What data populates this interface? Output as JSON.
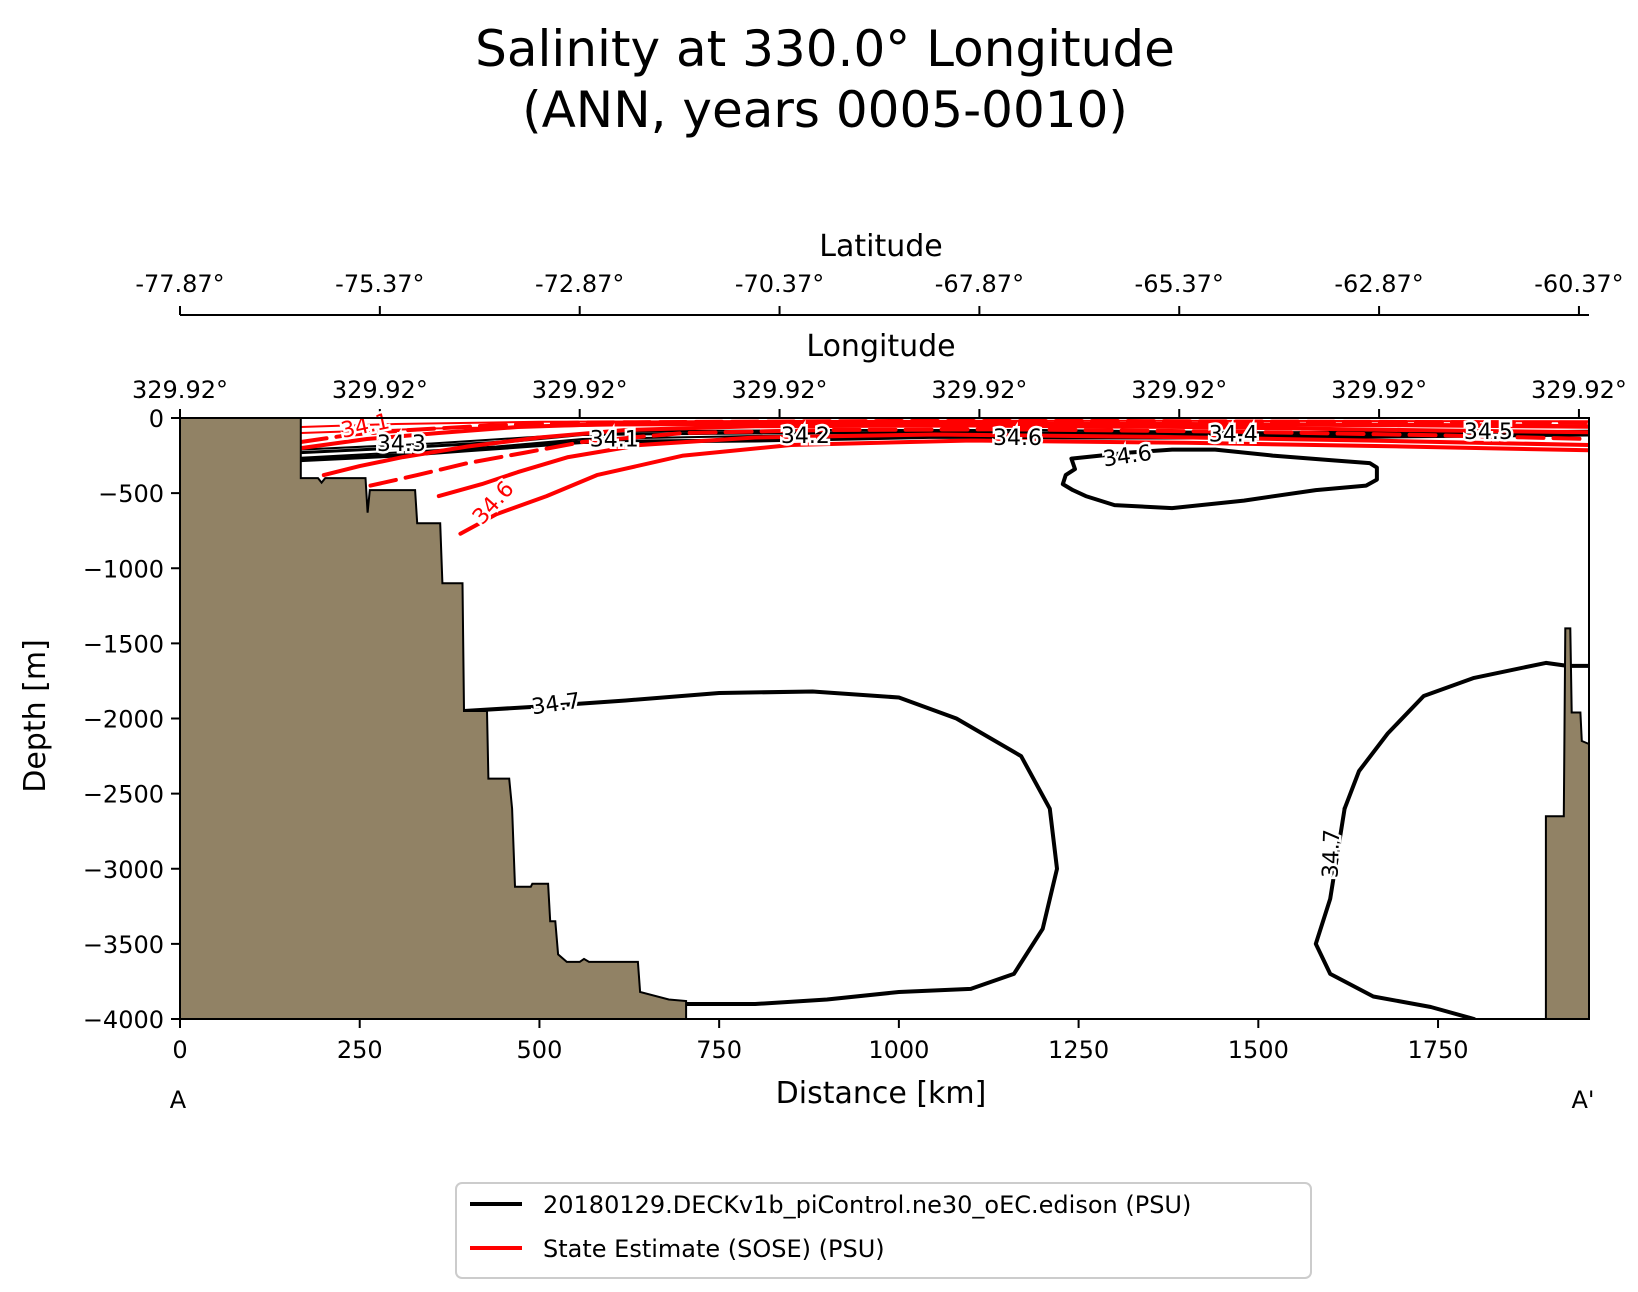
{
  "chart_data": {
    "type": "contour-section",
    "title_line1": "Salinity at 330.0° Longitude",
    "title_line2": "(ANN, years 0005-0010)",
    "xlabel": "Distance [km]",
    "ylabel": "Depth [m]",
    "xlim": [
      0,
      1960
    ],
    "ylim": [
      -4000,
      0
    ],
    "x_ticks": [
      0,
      250,
      500,
      750,
      1000,
      1250,
      1500,
      1750
    ],
    "y_ticks": [
      0,
      -500,
      -1000,
      -1500,
      -2000,
      -2500,
      -3000,
      -3500,
      -4000
    ],
    "latitude_axis": {
      "label": "Latitude",
      "tick_positions_km": [
        0,
        278,
        556,
        834,
        1112,
        1390,
        1668,
        1946
      ],
      "tick_labels": [
        "-77.87°",
        "-75.37°",
        "-72.87°",
        "-70.37°",
        "-67.87°",
        "-65.37°",
        "-62.87°",
        "-60.37°"
      ]
    },
    "longitude_axis": {
      "label": "Longitude",
      "tick_positions_km": [
        0,
        278,
        556,
        834,
        1112,
        1390,
        1668,
        1946
      ],
      "tick_labels": [
        "329.92°",
        "329.92°",
        "329.92°",
        "329.92°",
        "329.92°",
        "329.92°",
        "329.92°",
        "329.92°"
      ]
    },
    "endpoints": {
      "start": "A",
      "end": "A'"
    },
    "bathymetry": [
      [
        0,
        0
      ],
      [
        168,
        0
      ],
      [
        168,
        -400
      ],
      [
        192,
        -400
      ],
      [
        197,
        -430
      ],
      [
        202,
        -400
      ],
      [
        258,
        -400
      ],
      [
        261,
        -630
      ],
      [
        264,
        -480
      ],
      [
        327,
        -480
      ],
      [
        330,
        -700
      ],
      [
        362,
        -700
      ],
      [
        365,
        -1100
      ],
      [
        393,
        -1100
      ],
      [
        395,
        -1950
      ],
      [
        427,
        -1950
      ],
      [
        429,
        -2400
      ],
      [
        458,
        -2400
      ],
      [
        462,
        -2600
      ],
      [
        466,
        -3120
      ],
      [
        488,
        -3120
      ],
      [
        490,
        -3100
      ],
      [
        512,
        -3100
      ],
      [
        515,
        -3350
      ],
      [
        522,
        -3350
      ],
      [
        526,
        -3570
      ],
      [
        538,
        -3620
      ],
      [
        556,
        -3620
      ],
      [
        562,
        -3600
      ],
      [
        569,
        -3620
      ],
      [
        637,
        -3620
      ],
      [
        640,
        -3820
      ],
      [
        680,
        -3870
      ],
      [
        704,
        -3880
      ],
      [
        704,
        -4000
      ],
      [
        0,
        -4000
      ]
    ],
    "bathymetry_right": [
      [
        1900,
        -4000
      ],
      [
        1900,
        -2650
      ],
      [
        1925,
        -2650
      ],
      [
        1927,
        -1400
      ],
      [
        1934,
        -1400
      ],
      [
        1936,
        -1960
      ],
      [
        1948,
        -1960
      ],
      [
        1950,
        -2150
      ],
      [
        1960,
        -2170
      ],
      [
        1960,
        -4000
      ]
    ],
    "bathymetry_color": "#918265",
    "series": [
      {
        "name": "20180129.DECKv1b_piControl.ne30_oEC.edison (PSU)",
        "color": "#000000",
        "contours": [
          {
            "points": [
              [
                168,
                -280
              ],
              [
                300,
                -250
              ],
              [
                400,
                -215
              ],
              [
                560,
                -160
              ],
              [
                800,
                -150
              ],
              [
                1050,
                -125
              ],
              [
                1300,
                -130
              ],
              [
                1550,
                -130
              ],
              [
                1750,
                -120
              ],
              [
                1960,
                -110
              ]
            ],
            "width": 4
          },
          {
            "points": [
              [
                168,
                -230
              ],
              [
                300,
                -200
              ],
              [
                450,
                -160
              ],
              [
                560,
                -110
              ],
              [
                800,
                -100
              ],
              [
                1050,
                -95
              ],
              [
                1300,
                -100
              ],
              [
                1550,
                -110
              ],
              [
                1750,
                -100
              ],
              [
                1960,
                -90
              ]
            ],
            "width": 3
          },
          {
            "points": [
              [
                168,
                -210
              ],
              [
                350,
                -170
              ],
              [
                480,
                -130
              ],
              [
                620,
                -90
              ],
              [
                900,
                -80
              ],
              [
                1200,
                -80
              ],
              [
                1500,
                -95
              ],
              [
                1800,
                -90
              ],
              [
                1960,
                -85
              ]
            ],
            "width": 2
          },
          {
            "points": [
              [
                168,
                -265
              ],
              [
                320,
                -225
              ],
              [
                440,
                -190
              ],
              [
                560,
                -140
              ],
              [
                800,
                -120
              ],
              [
                1050,
                -110
              ],
              [
                1300,
                -115
              ],
              [
                1550,
                -125
              ],
              [
                1750,
                -115
              ],
              [
                1960,
                -100
              ]
            ],
            "width": 2
          },
          {
            "points": [
              [
                1240,
                -270
              ],
              [
                1320,
                -230
              ],
              [
                1380,
                -210
              ],
              [
                1440,
                -210
              ],
              [
                1520,
                -250
              ],
              [
                1600,
                -280
              ],
              [
                1655,
                -300
              ],
              [
                1665,
                -330
              ],
              [
                1665,
                -410
              ],
              [
                1650,
                -450
              ],
              [
                1580,
                -480
              ],
              [
                1480,
                -550
              ],
              [
                1380,
                -600
              ],
              [
                1300,
                -580
              ],
              [
                1260,
                -520
              ],
              [
                1242,
                -480
              ],
              [
                1228,
                -440
              ],
              [
                1232,
                -380
              ],
              [
                1245,
                -340
              ]
            ],
            "width": 4,
            "closed": true
          },
          {
            "points": [
              [
                395,
                -1950
              ],
              [
                500,
                -1920
              ],
              [
                620,
                -1880
              ],
              [
                750,
                -1830
              ],
              [
                880,
                -1820
              ],
              [
                1000,
                -1860
              ],
              [
                1080,
                -2000
              ],
              [
                1170,
                -2250
              ],
              [
                1210,
                -2600
              ],
              [
                1220,
                -3000
              ],
              [
                1200,
                -3400
              ],
              [
                1160,
                -3700
              ],
              [
                1100,
                -3800
              ],
              [
                1000,
                -3820
              ],
              [
                900,
                -3870
              ],
              [
                800,
                -3900
              ],
              [
                704,
                -3900
              ]
            ],
            "width": 4
          },
          {
            "points": [
              [
                1620,
                -2600
              ],
              [
                1640,
                -2350
              ],
              [
                1680,
                -2100
              ],
              [
                1730,
                -1850
              ],
              [
                1800,
                -1730
              ],
              [
                1900,
                -1630
              ],
              [
                1930,
                -1650
              ],
              [
                1960,
                -1650
              ]
            ],
            "width": 4
          },
          {
            "points": [
              [
                1620,
                -2600
              ],
              [
                1600,
                -3200
              ],
              [
                1580,
                -3500
              ],
              [
                1600,
                -3700
              ],
              [
                1660,
                -3850
              ],
              [
                1740,
                -3920
              ],
              [
                1800,
                -4000
              ]
            ],
            "width": 4
          }
        ],
        "labels": [
          {
            "text": "34.3",
            "x": 308,
            "y": -180,
            "rotate": 0
          },
          {
            "text": "34.1",
            "x": 604,
            "y": -150,
            "rotate": 0
          },
          {
            "text": "34.2",
            "x": 870,
            "y": -125,
            "rotate": 0
          },
          {
            "text": "34.6",
            "x": 1165,
            "y": -140,
            "rotate": 0
          },
          {
            "text": "34.4",
            "x": 1465,
            "y": -115,
            "rotate": 0
          },
          {
            "text": "34.5",
            "x": 1820,
            "y": -100,
            "rotate": 0
          },
          {
            "text": "34.6",
            "x": 1318,
            "y": -260,
            "rotate": -8
          },
          {
            "text": "34.7",
            "x": 523,
            "y": -1910,
            "rotate": -8
          },
          {
            "text": "34.7",
            "x": 1603,
            "y": -2900,
            "rotate": -88
          }
        ]
      },
      {
        "name": "State Estimate (SOSE) (PSU)",
        "color": "#ff0000",
        "contours": [
          {
            "points": [
              [
                168,
                -160
              ],
              [
                240,
                -110
              ],
              [
                320,
                -80
              ],
              [
                430,
                -50
              ],
              [
                560,
                -30
              ],
              [
                750,
                -25
              ],
              [
                1000,
                -20
              ],
              [
                1300,
                -20
              ],
              [
                1600,
                -25
              ],
              [
                1960,
                -30
              ]
            ],
            "width": 4,
            "dash": true
          },
          {
            "points": [
              [
                168,
                -200
              ],
              [
                260,
                -140
              ],
              [
                360,
                -100
              ],
              [
                470,
                -60
              ],
              [
                600,
                -40
              ],
              [
                800,
                -35
              ],
              [
                1100,
                -35
              ],
              [
                1400,
                -40
              ],
              [
                1700,
                -45
              ],
              [
                1960,
                -55
              ]
            ],
            "width": 4
          },
          {
            "points": [
              [
                200,
                -380
              ],
              [
                250,
                -320
              ],
              [
                310,
                -260
              ],
              [
                400,
                -190
              ],
              [
                500,
                -130
              ],
              [
                620,
                -80
              ],
              [
                800,
                -55
              ],
              [
                1100,
                -50
              ],
              [
                1400,
                -60
              ],
              [
                1700,
                -80
              ],
              [
                1960,
                -95
              ]
            ],
            "width": 4
          },
          {
            "points": [
              [
                265,
                -450
              ],
              [
                330,
                -380
              ],
              [
                400,
                -300
              ],
              [
                480,
                -230
              ],
              [
                560,
                -160
              ],
              [
                700,
                -100
              ],
              [
                900,
                -80
              ],
              [
                1150,
                -75
              ],
              [
                1450,
                -90
              ],
              [
                1750,
                -115
              ],
              [
                1960,
                -140
              ]
            ],
            "width": 4,
            "dash": true
          },
          {
            "points": [
              [
                360,
                -520
              ],
              [
                420,
                -440
              ],
              [
                470,
                -360
              ],
              [
                540,
                -260
              ],
              [
                640,
                -180
              ],
              [
                800,
                -130
              ],
              [
                1050,
                -110
              ],
              [
                1350,
                -125
              ],
              [
                1650,
                -150
              ],
              [
                1960,
                -180
              ]
            ],
            "width": 4
          },
          {
            "points": [
              [
                390,
                -770
              ],
              [
                440,
                -640
              ],
              [
                510,
                -520
              ],
              [
                580,
                -380
              ],
              [
                700,
                -250
              ],
              [
                850,
                -180
              ],
              [
                1100,
                -150
              ],
              [
                1400,
                -165
              ],
              [
                1700,
                -190
              ],
              [
                1960,
                -215
              ]
            ],
            "width": 4
          },
          {
            "points": [
              [
                168,
                -60
              ],
              [
                300,
                -40
              ],
              [
                500,
                -25
              ],
              [
                800,
                -20
              ],
              [
                1200,
                -18
              ],
              [
                1600,
                -20
              ],
              [
                1960,
                -22
              ]
            ],
            "width": 2
          },
          {
            "points": [
              [
                168,
                -100
              ],
              [
                350,
                -70
              ],
              [
                600,
                -50
              ],
              [
                900,
                -45
              ],
              [
                1300,
                -45
              ],
              [
                1700,
                -55
              ],
              [
                1960,
                -65
              ]
            ],
            "width": 2
          }
        ],
        "labels": [
          {
            "text": "34.1",
            "x": 258,
            "y": -60,
            "rotate": -12
          },
          {
            "text": "34.6",
            "x": 437,
            "y": -570,
            "rotate": -48
          }
        ]
      }
    ],
    "legend": {
      "position": "lower-center",
      "entries": [
        {
          "label": "20180129.DECKv1b_piControl.ne30_oEC.edison (PSU)",
          "color": "#000000"
        },
        {
          "label": "State Estimate (SOSE) (PSU)",
          "color": "#ff0000"
        }
      ]
    }
  }
}
